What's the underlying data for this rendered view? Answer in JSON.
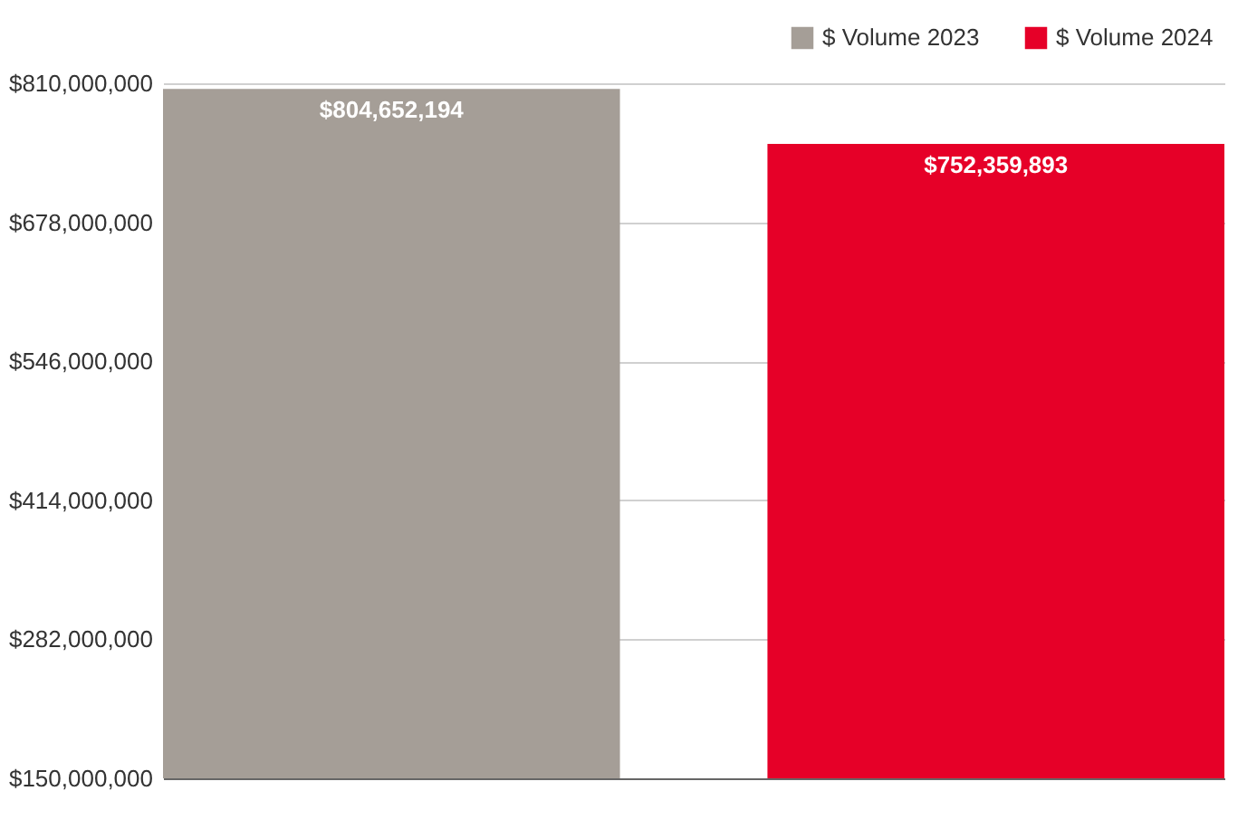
{
  "chart_data": {
    "type": "bar",
    "categories": [
      null
    ],
    "series": [
      {
        "name": "$ Volume 2023",
        "color": "#a59e97",
        "values": [
          804652194
        ],
        "value_labels": [
          "$804,652,194"
        ]
      },
      {
        "name": "$ Volume 2024",
        "color": "#e60028",
        "values": [
          752359893
        ],
        "value_labels": [
          "$752,359,893"
        ]
      }
    ],
    "ylim": [
      150000000,
      810000000
    ],
    "yticks": [
      {
        "value": 150000000,
        "label": "$150,000,000"
      },
      {
        "value": 282000000,
        "label": "$282,000,000"
      },
      {
        "value": 414000000,
        "label": "$414,000,000"
      },
      {
        "value": 546000000,
        "label": "$546,000,000"
      },
      {
        "value": 678000000,
        "label": "$678,000,000"
      },
      {
        "value": 810000000,
        "label": "$810,000,000"
      }
    ],
    "grid": "y",
    "legend": "top right",
    "tick_labels": "y"
  }
}
